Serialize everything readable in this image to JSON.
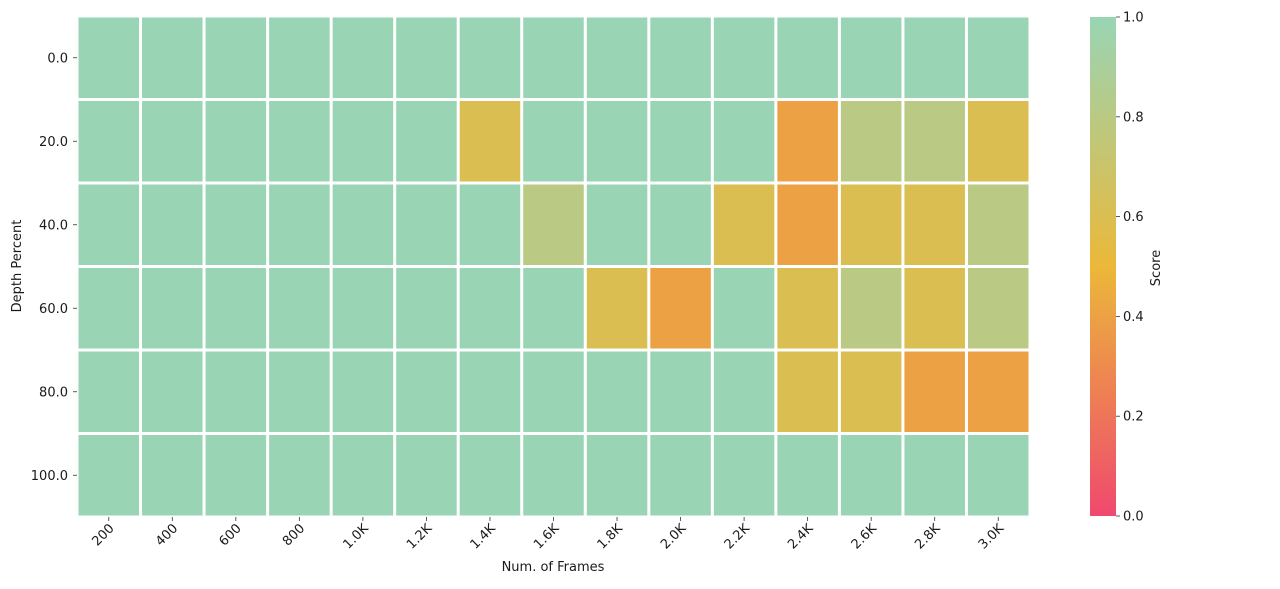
{
  "chart_data": {
    "type": "heatmap",
    "title": "",
    "xlabel": "Num. of Frames",
    "ylabel": "Depth Percent",
    "x_categories": [
      "200",
      "400",
      "600",
      "800",
      "1.0K",
      "1.2K",
      "1.4K",
      "1.6K",
      "1.8K",
      "2.0K",
      "2.2K",
      "2.4K",
      "2.6K",
      "2.8K",
      "3.0K"
    ],
    "y_categories": [
      "0.0",
      "20.0",
      "40.0",
      "60.0",
      "80.0",
      "100.0"
    ],
    "values": [
      [
        1.0,
        1.0,
        1.0,
        1.0,
        1.0,
        1.0,
        1.0,
        1.0,
        1.0,
        1.0,
        1.0,
        1.0,
        1.0,
        1.0,
        1.0
      ],
      [
        1.0,
        1.0,
        1.0,
        1.0,
        1.0,
        1.0,
        0.6,
        1.0,
        1.0,
        1.0,
        1.0,
        0.4,
        0.8,
        0.8,
        0.6
      ],
      [
        1.0,
        1.0,
        1.0,
        1.0,
        1.0,
        1.0,
        1.0,
        0.8,
        1.0,
        1.0,
        0.6,
        0.4,
        0.6,
        0.6,
        0.8
      ],
      [
        1.0,
        1.0,
        1.0,
        1.0,
        1.0,
        1.0,
        1.0,
        1.0,
        0.6,
        0.4,
        1.0,
        0.6,
        0.8,
        0.6,
        0.8
      ],
      [
        1.0,
        1.0,
        1.0,
        1.0,
        1.0,
        1.0,
        1.0,
        1.0,
        1.0,
        1.0,
        1.0,
        0.6,
        0.6,
        0.4,
        0.4
      ],
      [
        1.0,
        1.0,
        1.0,
        1.0,
        1.0,
        1.0,
        1.0,
        1.0,
        1.0,
        1.0,
        1.0,
        1.0,
        1.0,
        1.0,
        1.0
      ]
    ],
    "value_range": [
      0.0,
      1.0
    ],
    "grid": false,
    "colorbar": {
      "label": "Score",
      "ticks": [
        0.0,
        0.2,
        0.4,
        0.6,
        0.8,
        1.0
      ],
      "tick_labels": [
        "0.0",
        "0.2",
        "0.4",
        "0.6",
        "0.8",
        "1.0"
      ],
      "placement": "right",
      "colors": [
        "#F0496E",
        "#EBB839",
        "#99D5B5"
      ]
    }
  }
}
